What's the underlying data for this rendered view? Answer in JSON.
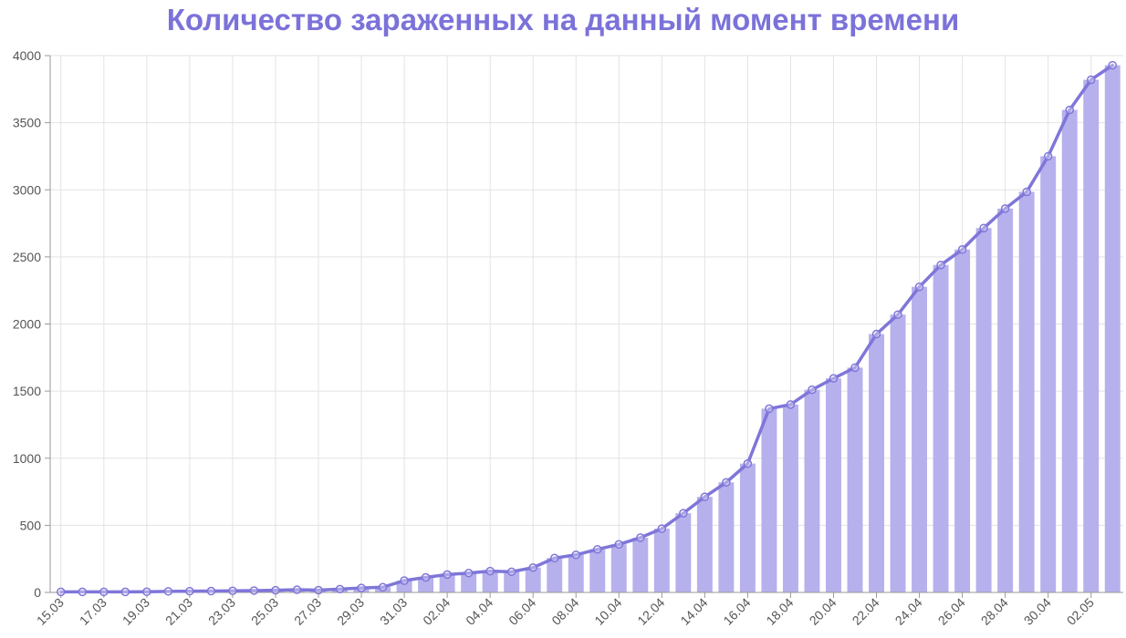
{
  "chart_data": {
    "type": "bar",
    "title": "Количество зараженных на данный момент времени",
    "xlabel": "",
    "ylabel": "",
    "ylim": [
      0,
      4000
    ],
    "y_ticks": [
      "0",
      "500",
      "1000",
      "1500",
      "2000",
      "2500",
      "3000",
      "3500",
      "4000"
    ],
    "x_tick_labels": [
      "15.03",
      "17.03",
      "19.03",
      "21.03",
      "23.03",
      "25.03",
      "27.03",
      "29.03",
      "31.03",
      "02.04",
      "04.04",
      "06.04",
      "08.04",
      "10.04",
      "12.04",
      "14.04",
      "16.04",
      "18.04",
      "20.04",
      "22.04",
      "24.04",
      "26.04",
      "28.04",
      "30.04",
      "02.05"
    ],
    "grid": true,
    "legend": "none",
    "colors": {
      "bar": "#b6b0ec",
      "line": "#7f76d9",
      "title": "#7b72d9"
    },
    "categories": [
      "15.03",
      "16.03",
      "17.03",
      "18.03",
      "19.03",
      "20.03",
      "21.03",
      "22.03",
      "23.03",
      "24.03",
      "25.03",
      "26.03",
      "27.03",
      "28.03",
      "29.03",
      "30.03",
      "31.03",
      "01.04",
      "02.04",
      "03.04",
      "04.04",
      "05.04",
      "06.04",
      "07.04",
      "08.04",
      "09.04",
      "10.04",
      "11.04",
      "12.04",
      "13.04",
      "14.04",
      "15.04",
      "16.04",
      "17.04",
      "18.04",
      "19.04",
      "20.04",
      "21.04",
      "22.04",
      "23.04",
      "24.04",
      "25.04",
      "26.04",
      "27.04",
      "28.04",
      "29.04",
      "30.04",
      "01.05",
      "02.05",
      "03.05"
    ],
    "series": [
      {
        "type": "bar",
        "values": [
          4,
          4,
          4,
          4,
          5,
          8,
          9,
          10,
          12,
          14,
          16,
          20,
          17,
          25,
          33,
          39,
          88,
          112,
          133,
          144,
          159,
          154,
          185,
          256,
          280,
          321,
          358,
          408,
          475,
          590,
          712,
          820,
          960,
          1369,
          1400,
          1510,
          1595,
          1675,
          1925,
          2070,
          2277,
          2440,
          2555,
          2715,
          2860,
          2985,
          3250,
          3595,
          3820,
          3928
        ]
      },
      {
        "type": "line",
        "values": [
          4,
          4,
          4,
          4,
          5,
          8,
          9,
          10,
          12,
          14,
          16,
          20,
          17,
          25,
          33,
          39,
          88,
          112,
          133,
          144,
          159,
          154,
          185,
          256,
          280,
          321,
          358,
          408,
          475,
          590,
          712,
          820,
          960,
          1369,
          1400,
          1510,
          1595,
          1675,
          1925,
          2070,
          2277,
          2440,
          2555,
          2715,
          2860,
          2985,
          3250,
          3595,
          3820,
          3928
        ]
      }
    ]
  }
}
